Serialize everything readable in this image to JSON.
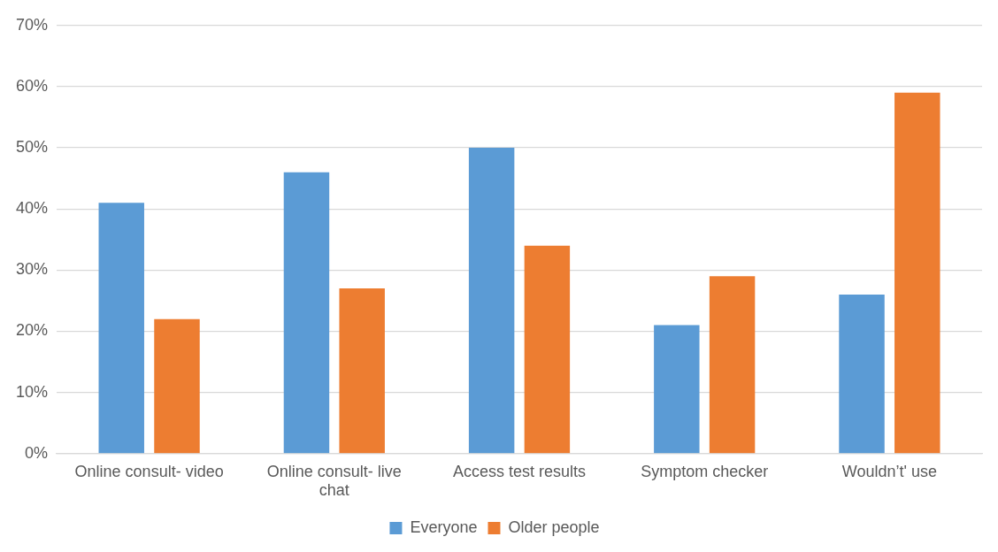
{
  "chart_data": {
    "type": "bar",
    "categories": [
      "Online consult- video",
      "Online consult- live chat",
      "Access test results",
      "Symptom checker",
      "Wouldn’t' use"
    ],
    "series": [
      {
        "name": "Everyone",
        "color": "#5b9bd5",
        "values": [
          41,
          46,
          50,
          21,
          26
        ]
      },
      {
        "name": "Older people",
        "color": "#ed7d31",
        "values": [
          22,
          27,
          34,
          29,
          59
        ]
      }
    ],
    "ylim": [
      0,
      70
    ],
    "yticks": [
      {
        "value": 0,
        "label": "0%"
      },
      {
        "value": 10,
        "label": "10%"
      },
      {
        "value": 20,
        "label": "20%"
      },
      {
        "value": 30,
        "label": "30%"
      },
      {
        "value": 40,
        "label": "40%"
      },
      {
        "value": 50,
        "label": "50%"
      },
      {
        "value": 60,
        "label": "60%"
      },
      {
        "value": 70,
        "label": "70%"
      }
    ],
    "grid": "y",
    "legend": "bottom"
  }
}
